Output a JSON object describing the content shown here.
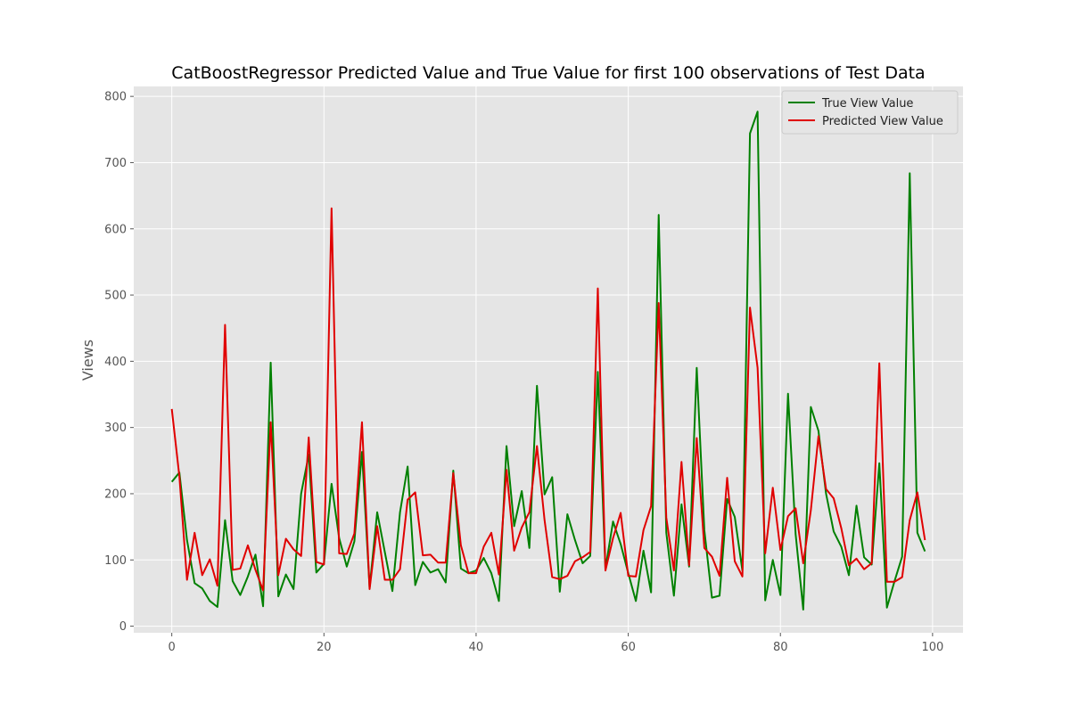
{
  "chart_data": {
    "type": "line",
    "title": "CatBoostRegressor Predicted Value and True Value for first 100 observations of Test Data",
    "xlabel": "",
    "ylabel": "Views",
    "xlim": [
      -5,
      104
    ],
    "ylim": [
      -10,
      815
    ],
    "xticks": [
      0,
      20,
      40,
      60,
      80,
      100
    ],
    "yticks": [
      0,
      100,
      200,
      300,
      400,
      500,
      600,
      700,
      800
    ],
    "grid": true,
    "legend_position": "top-right",
    "background_color": "#e5e5e5",
    "x": [
      0,
      1,
      2,
      3,
      4,
      5,
      6,
      7,
      8,
      9,
      10,
      11,
      12,
      13,
      14,
      15,
      16,
      17,
      18,
      19,
      20,
      21,
      22,
      23,
      24,
      25,
      26,
      27,
      28,
      29,
      30,
      31,
      32,
      33,
      34,
      35,
      36,
      37,
      38,
      39,
      40,
      41,
      42,
      43,
      44,
      45,
      46,
      47,
      48,
      49,
      50,
      51,
      52,
      53,
      54,
      55,
      56,
      57,
      58,
      59,
      60,
      61,
      62,
      63,
      64,
      65,
      66,
      67,
      68,
      69,
      70,
      71,
      72,
      73,
      74,
      75,
      76,
      77,
      78,
      79,
      80,
      81,
      82,
      83,
      84,
      85,
      86,
      87,
      88,
      89,
      90,
      91,
      92,
      93,
      94,
      95,
      96,
      97,
      98,
      99
    ],
    "series": [
      {
        "name": "True View Value",
        "color": "#008000",
        "values": [
          218,
          232,
          130,
          65,
          57,
          38,
          29,
          160,
          68,
          47,
          75,
          108,
          30,
          398,
          45,
          78,
          56,
          200,
          259,
          81,
          94,
          215,
          133,
          90,
          128,
          263,
          58,
          172,
          112,
          53,
          172,
          241,
          62,
          97,
          81,
          86,
          66,
          235,
          87,
          80,
          84,
          103,
          80,
          38,
          272,
          151,
          204,
          118,
          363,
          199,
          225,
          52,
          169,
          130,
          95,
          106,
          384,
          87,
          158,
          124,
          80,
          38,
          114,
          51,
          621,
          141,
          46,
          184,
          90,
          390,
          145,
          43,
          46,
          192,
          165,
          84,
          744,
          777,
          39,
          100,
          47,
          351,
          139,
          25,
          331,
          295,
          200,
          143,
          120,
          77,
          182,
          104,
          93,
          246,
          28,
          68,
          105,
          684,
          141,
          113
        ]
      },
      {
        "name": "Predicted View Value",
        "color": "#e00000",
        "values": [
          328,
          226,
          70,
          141,
          77,
          101,
          61,
          455,
          85,
          87,
          122,
          85,
          54,
          308,
          77,
          132,
          116,
          106,
          285,
          97,
          93,
          631,
          110,
          109,
          140,
          308,
          56,
          151,
          70,
          70,
          86,
          191,
          202,
          107,
          108,
          96,
          96,
          231,
          122,
          80,
          80,
          120,
          141,
          78,
          236,
          114,
          149,
          172,
          272,
          160,
          74,
          71,
          76,
          98,
          104,
          112,
          510,
          84,
          133,
          171,
          76,
          75,
          145,
          181,
          488,
          164,
          84,
          248,
          92,
          284,
          118,
          105,
          76,
          224,
          98,
          75,
          481,
          390,
          110,
          209,
          115,
          166,
          178,
          95,
          175,
          287,
          207,
          193,
          148,
          92,
          102,
          86,
          95,
          397,
          67,
          67,
          74,
          160,
          202,
          130
        ]
      }
    ]
  }
}
